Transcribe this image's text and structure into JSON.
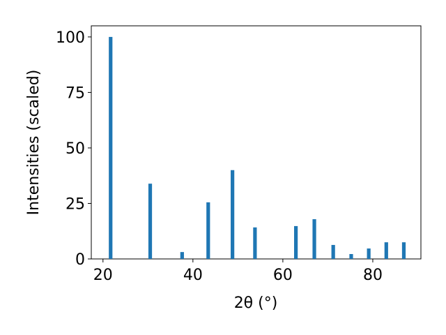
{
  "chart_data": {
    "type": "bar",
    "x": [
      21.7,
      30.5,
      37.6,
      43.4,
      48.8,
      53.8,
      62.9,
      67.0,
      71.2,
      75.2,
      79.1,
      83.0,
      86.9
    ],
    "values": [
      100,
      33.9,
      3.1,
      25.5,
      40,
      14.2,
      14.8,
      17.9,
      6.3,
      2.2,
      4.7,
      7.5,
      7.5
    ],
    "color": "#1f77b4",
    "xlabel": "2θ (°)",
    "ylabel": "Intensities (scaled)",
    "xlim": [
      17.4,
      90.7
    ],
    "ylim": [
      0,
      105
    ],
    "xticks": [
      20,
      40,
      60,
      80
    ],
    "yticks": [
      0,
      25,
      50,
      75,
      100
    ]
  }
}
